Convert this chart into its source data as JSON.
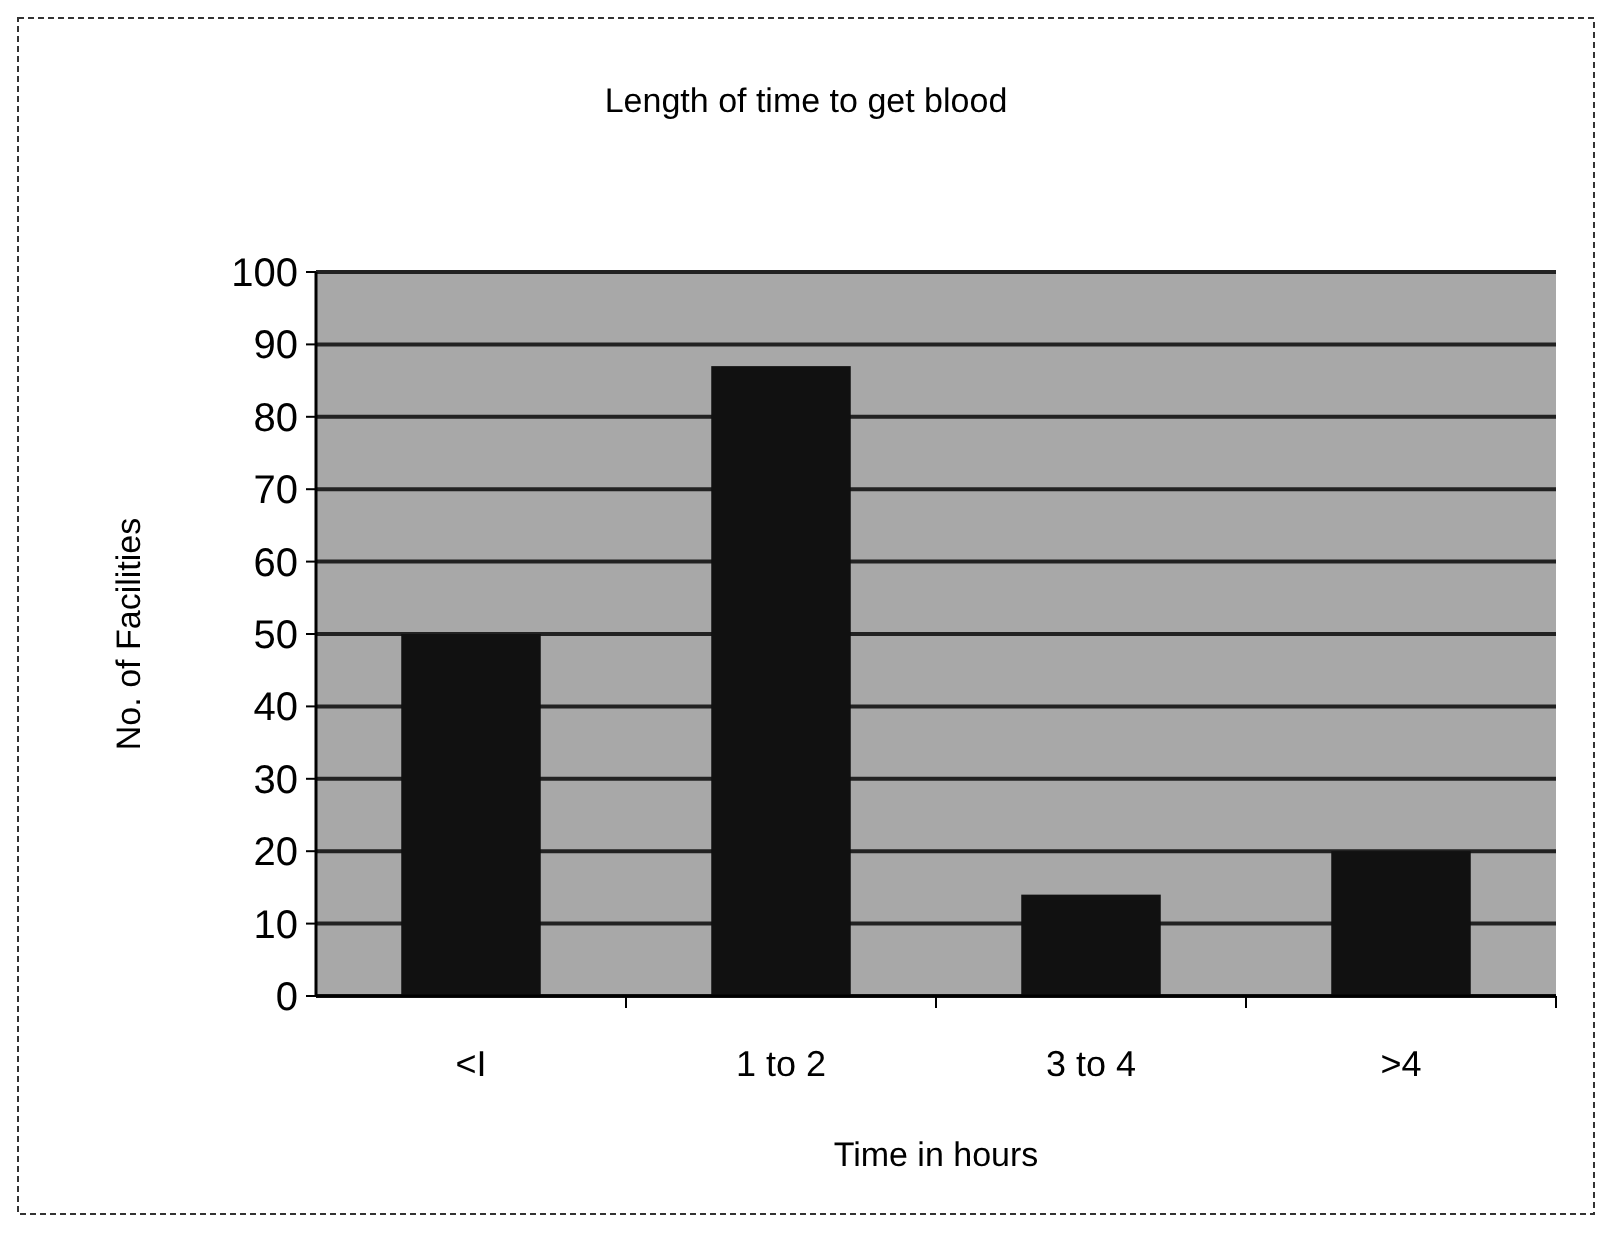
{
  "chart_data": {
    "type": "bar",
    "title": "Length of time to get blood",
    "xlabel": "Time in hours",
    "ylabel": "No. of Facilities",
    "categories": [
      "<I",
      "1 to 2",
      "3 to 4",
      ">4"
    ],
    "values": [
      50,
      87,
      14,
      20
    ],
    "color": "#111111",
    "ylim": [
      0,
      100
    ],
    "yticks": [
      0,
      10,
      20,
      30,
      40,
      50,
      60,
      70,
      80,
      90,
      100
    ],
    "grid": "y"
  }
}
